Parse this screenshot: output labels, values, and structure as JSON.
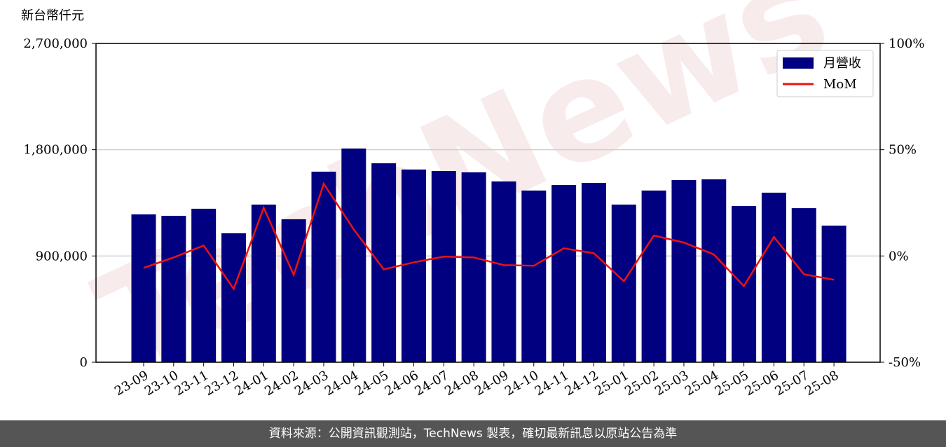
{
  "chart_data": {
    "type": "bar-line",
    "y_axis_label": "新台幣仟元",
    "watermark": "TechNews",
    "categories": [
      "23-09",
      "23-10",
      "23-11",
      "23-12",
      "24-01",
      "24-02",
      "24-03",
      "24-04",
      "24-05",
      "24-06",
      "24-07",
      "24-08",
      "24-09",
      "24-10",
      "24-11",
      "24-12",
      "25-01",
      "25-02",
      "25-03",
      "25-04",
      "25-05",
      "25-06",
      "25-07",
      "25-08"
    ],
    "series": [
      {
        "name": "月營收",
        "type": "bar",
        "color": "#000080",
        "values": [
          1252000,
          1240000,
          1300000,
          1092000,
          1335000,
          1211000,
          1614000,
          1810000,
          1685000,
          1632000,
          1620000,
          1608000,
          1531000,
          1454000,
          1501000,
          1519000,
          1335000,
          1454000,
          1543000,
          1549000,
          1323000,
          1436000,
          1305000,
          1157000
        ]
      },
      {
        "name": "MoM",
        "type": "line",
        "axis": "y2",
        "color": "#ee1111",
        "values": [
          -5.6,
          -0.7,
          4.9,
          -15.5,
          22.7,
          -8.9,
          34,
          12.5,
          -6.3,
          -3,
          -0.3,
          -0.7,
          -4.3,
          -4.6,
          3.6,
          1.3,
          -11.9,
          9.6,
          6.3,
          0.7,
          -14.2,
          8.9,
          -8.6,
          -11.2
        ]
      }
    ],
    "ylim": [
      0,
      2700000
    ],
    "yticks": [
      0,
      {
        "value": 900000,
        "label": "900,000"
      },
      {
        "value": 1800000,
        "label": "1,800,000"
      },
      {
        "value": 2700000,
        "label": "2,700,000"
      }
    ],
    "y2lim": [
      -50,
      100
    ],
    "y2ticks": [
      {
        "value": -50,
        "label": "-50%"
      },
      {
        "value": 0,
        "label": "0%"
      },
      {
        "value": 50,
        "label": "50%"
      },
      {
        "value": 100,
        "label": "100%"
      }
    ],
    "grid": true,
    "legend": "upper right",
    "footer": "資料來源：公開資訊觀測站，TechNews 製表，確切最新訊息以原站公告為準"
  }
}
